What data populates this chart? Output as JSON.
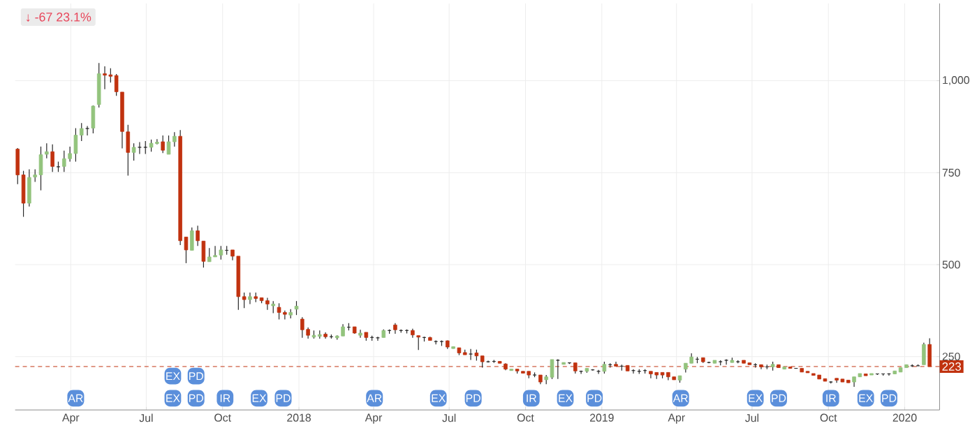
{
  "chart_data": {
    "type": "candlestick",
    "title": "↓ -67 23.1%",
    "x": [
      "2017-01-27",
      "2017-02-03",
      "2017-02-10",
      "2017-02-17",
      "2017-02-24",
      "2017-03-03",
      "2017-03-10",
      "2017-03-17",
      "2017-03-24",
      "2017-03-31",
      "2017-04-07",
      "2017-04-14",
      "2017-04-21",
      "2017-04-28",
      "2017-05-05",
      "2017-05-12",
      "2017-05-19",
      "2017-05-26",
      "2017-06-02",
      "2017-06-09",
      "2017-06-16",
      "2017-06-23",
      "2017-06-30",
      "2017-07-07",
      "2017-07-14",
      "2017-07-21",
      "2017-07-28",
      "2017-08-04",
      "2017-08-11",
      "2017-08-18",
      "2017-08-25",
      "2017-09-01",
      "2017-09-08",
      "2017-09-15",
      "2017-09-22",
      "2017-09-29",
      "2017-10-06",
      "2017-10-13",
      "2017-10-20",
      "2017-10-27",
      "2017-11-03",
      "2017-11-10",
      "2017-11-17",
      "2017-11-24",
      "2017-12-01",
      "2017-12-08",
      "2017-12-15",
      "2017-12-22",
      "2017-12-29",
      "2018-01-05",
      "2018-01-12",
      "2018-01-19",
      "2018-01-26",
      "2018-02-02",
      "2018-02-09",
      "2018-02-16",
      "2018-02-23",
      "2018-03-02",
      "2018-03-09",
      "2018-03-16",
      "2018-03-23",
      "2018-03-30",
      "2018-04-06",
      "2018-04-13",
      "2018-04-20",
      "2018-04-27",
      "2018-05-04",
      "2018-05-11",
      "2018-05-18",
      "2018-05-25",
      "2018-06-01",
      "2018-06-08",
      "2018-06-15",
      "2018-06-22",
      "2018-06-29",
      "2018-07-06",
      "2018-07-13",
      "2018-07-20",
      "2018-07-27",
      "2018-08-03",
      "2018-08-10",
      "2018-08-17",
      "2018-08-24",
      "2018-08-31",
      "2018-09-07",
      "2018-09-14",
      "2018-09-21",
      "2018-09-28",
      "2018-10-05",
      "2018-10-12",
      "2018-10-19",
      "2018-10-26",
      "2018-11-02",
      "2018-11-09",
      "2018-11-16",
      "2018-11-23",
      "2018-11-30",
      "2018-12-07",
      "2018-12-14",
      "2018-12-21",
      "2018-12-28",
      "2019-01-04",
      "2019-01-11",
      "2019-01-18",
      "2019-01-25",
      "2019-02-01",
      "2019-02-08",
      "2019-02-15",
      "2019-02-22",
      "2019-03-01",
      "2019-03-08",
      "2019-03-15",
      "2019-03-22",
      "2019-03-29",
      "2019-04-05",
      "2019-04-12",
      "2019-04-19",
      "2019-04-26",
      "2019-05-03",
      "2019-05-10",
      "2019-05-17",
      "2019-05-24",
      "2019-05-31",
      "2019-06-07",
      "2019-06-14",
      "2019-06-21",
      "2019-06-28",
      "2019-07-05",
      "2019-07-12",
      "2019-07-19",
      "2019-07-26",
      "2019-08-02",
      "2019-08-09",
      "2019-08-16",
      "2019-08-23",
      "2019-08-30",
      "2019-09-06",
      "2019-09-13",
      "2019-09-20",
      "2019-09-27",
      "2019-10-04",
      "2019-10-11",
      "2019-10-18",
      "2019-10-25",
      "2019-11-01",
      "2019-11-08",
      "2019-11-15",
      "2019-11-22",
      "2019-11-29",
      "2019-12-06",
      "2019-12-13",
      "2019-12-20",
      "2019-12-27",
      "2020-01-03",
      "2020-01-10",
      "2020-01-17",
      "2020-01-24",
      "2020-01-31"
    ],
    "ohlc": [
      [
        814,
        817,
        719,
        744
      ],
      [
        744,
        755,
        630,
        667
      ],
      [
        667,
        759,
        658,
        737
      ],
      [
        738,
        759,
        725,
        744
      ],
      [
        744,
        821,
        702,
        799
      ],
      [
        800,
        830,
        789,
        807
      ],
      [
        807,
        827,
        752,
        767
      ],
      [
        766,
        780,
        752,
        766
      ],
      [
        767,
        810,
        752,
        788
      ],
      [
        788,
        821,
        780,
        802
      ],
      [
        802,
        871,
        780,
        852
      ],
      [
        852,
        885,
        836,
        870
      ],
      [
        870,
        877,
        851,
        870
      ],
      [
        871,
        933,
        857,
        931
      ],
      [
        935,
        1048,
        927,
        1019
      ],
      [
        1019,
        1039,
        977,
        1015
      ],
      [
        1016,
        1034,
        995,
        1012
      ],
      [
        1014,
        1018,
        959,
        970
      ],
      [
        969,
        969,
        816,
        862
      ],
      [
        861,
        880,
        742,
        805
      ],
      [
        805,
        830,
        783,
        819
      ],
      [
        819,
        833,
        801,
        819
      ],
      [
        819,
        836,
        801,
        819
      ],
      [
        819,
        840,
        807,
        830
      ],
      [
        829,
        841,
        827,
        833
      ],
      [
        834,
        851,
        803,
        811
      ],
      [
        800,
        851,
        800,
        834
      ],
      [
        834,
        860,
        821,
        849
      ],
      [
        849,
        866,
        553,
        565
      ],
      [
        575,
        575,
        504,
        540
      ],
      [
        539,
        601,
        539,
        592
      ],
      [
        592,
        606,
        551,
        565
      ],
      [
        564,
        564,
        492,
        509
      ],
      [
        508,
        545,
        508,
        521
      ],
      [
        521,
        551,
        521,
        525
      ],
      [
        526,
        551,
        514,
        540
      ],
      [
        539,
        551,
        527,
        539
      ],
      [
        540,
        540,
        512,
        523
      ],
      [
        523,
        523,
        377,
        413
      ],
      [
        413,
        424,
        382,
        405
      ],
      [
        405,
        424,
        393,
        413
      ],
      [
        413,
        424,
        398,
        408
      ],
      [
        410,
        410,
        395,
        402
      ],
      [
        402,
        410,
        377,
        393
      ],
      [
        388,
        401,
        368,
        393
      ],
      [
        384,
        395,
        351,
        370
      ],
      [
        370,
        375,
        351,
        365
      ],
      [
        363,
        379,
        354,
        370
      ],
      [
        379,
        401,
        363,
        387
      ],
      [
        352,
        357,
        301,
        323
      ],
      [
        324,
        329,
        299,
        308
      ],
      [
        303,
        321,
        299,
        308
      ],
      [
        305,
        321,
        299,
        310
      ],
      [
        311,
        316,
        299,
        304
      ],
      [
        304,
        310,
        299,
        304
      ],
      [
        301,
        308,
        296,
        306
      ],
      [
        306,
        338,
        306,
        331
      ],
      [
        330,
        341,
        321,
        330
      ],
      [
        331,
        331,
        312,
        314
      ],
      [
        308,
        323,
        301,
        314
      ],
      [
        316,
        316,
        293,
        302
      ],
      [
        302,
        307,
        293,
        302
      ],
      [
        301,
        304,
        293,
        301
      ],
      [
        302,
        324,
        302,
        321
      ],
      [
        321,
        324,
        312,
        321
      ],
      [
        336,
        341,
        312,
        323
      ],
      [
        321,
        324,
        315,
        321
      ],
      [
        321,
        324,
        313,
        321
      ],
      [
        321,
        326,
        301,
        309
      ],
      [
        307,
        307,
        268,
        303
      ],
      [
        302,
        304,
        291,
        302
      ],
      [
        302,
        304,
        294,
        294
      ],
      [
        291,
        294,
        283,
        291
      ],
      [
        291,
        294,
        279,
        291
      ],
      [
        293,
        294,
        271,
        276
      ],
      [
        272,
        277,
        272,
        277
      ],
      [
        274,
        274,
        254,
        260
      ],
      [
        261,
        269,
        255,
        255
      ],
      [
        257,
        271,
        241,
        257
      ],
      [
        260,
        269,
        239,
        252
      ],
      [
        252,
        252,
        220,
        236
      ],
      [
        236,
        239,
        234,
        236
      ],
      [
        237,
        241,
        233,
        237
      ],
      [
        237,
        237,
        232,
        232
      ],
      [
        230,
        232,
        213,
        216
      ],
      [
        212,
        216,
        212,
        216
      ],
      [
        216,
        216,
        204,
        211
      ],
      [
        210,
        210,
        205,
        205
      ],
      [
        210,
        210,
        191,
        200
      ],
      [
        200,
        207,
        194,
        200
      ],
      [
        200,
        200,
        175,
        181
      ],
      [
        187,
        200,
        175,
        195
      ],
      [
        194,
        242,
        189,
        242
      ],
      [
        240,
        243,
        189,
        240
      ],
      [
        229,
        234,
        229,
        234
      ],
      [
        233,
        234,
        230,
        233
      ],
      [
        233,
        233,
        204,
        211
      ],
      [
        210,
        212,
        203,
        210
      ],
      [
        210,
        218,
        206,
        218
      ],
      [
        214,
        216,
        212,
        214
      ],
      [
        210,
        214,
        203,
        210
      ],
      [
        210,
        236,
        204,
        229
      ],
      [
        228,
        232,
        220,
        228
      ],
      [
        229,
        236,
        224,
        224
      ],
      [
        224,
        228,
        212,
        224
      ],
      [
        226,
        226,
        211,
        211
      ],
      [
        212,
        216,
        204,
        212
      ],
      [
        210,
        216,
        203,
        210
      ],
      [
        212,
        216,
        204,
        212
      ],
      [
        210,
        210,
        191,
        203
      ],
      [
        207,
        207,
        189,
        200
      ],
      [
        207,
        207,
        191,
        200
      ],
      [
        207,
        207,
        186,
        195
      ],
      [
        195,
        195,
        187,
        187
      ],
      [
        186,
        198,
        179,
        198
      ],
      [
        216,
        232,
        207,
        232
      ],
      [
        232,
        259,
        232,
        249
      ],
      [
        243,
        249,
        232,
        243
      ],
      [
        247,
        247,
        233,
        236
      ],
      [
        234,
        236,
        232,
        234
      ],
      [
        232,
        240,
        232,
        240
      ],
      [
        236,
        240,
        226,
        236
      ],
      [
        240,
        243,
        228,
        240
      ],
      [
        234,
        247,
        234,
        240
      ],
      [
        236,
        240,
        232,
        236
      ],
      [
        240,
        240,
        232,
        232
      ],
      [
        233,
        233,
        228,
        228
      ],
      [
        228,
        232,
        220,
        228
      ],
      [
        228,
        228,
        216,
        222
      ],
      [
        222,
        228,
        216,
        222
      ],
      [
        222,
        236,
        212,
        229
      ],
      [
        228,
        228,
        220,
        220
      ],
      [
        216,
        222,
        216,
        222
      ],
      [
        222,
        222,
        218,
        218
      ],
      [
        218,
        218,
        218,
        218
      ],
      [
        218,
        218,
        208,
        208
      ],
      [
        210,
        210,
        206,
        206
      ],
      [
        204,
        204,
        199,
        199
      ],
      [
        200,
        200,
        189,
        189
      ],
      [
        190,
        190,
        183,
        183
      ],
      [
        181,
        183,
        177,
        181
      ],
      [
        191,
        191,
        179,
        186
      ],
      [
        189,
        189,
        181,
        181
      ],
      [
        186,
        186,
        179,
        179
      ],
      [
        181,
        195,
        168,
        195
      ],
      [
        195,
        204,
        195,
        204
      ],
      [
        203,
        203,
        198,
        198
      ],
      [
        200,
        204,
        200,
        204
      ],
      [
        203,
        204,
        200,
        203
      ],
      [
        203,
        204,
        198,
        203
      ],
      [
        203,
        205,
        198,
        203
      ],
      [
        203,
        211,
        203,
        211
      ],
      [
        208,
        220,
        208,
        220
      ],
      [
        220,
        228,
        220,
        228
      ],
      [
        225,
        229,
        222,
        225
      ],
      [
        225,
        229,
        225,
        225
      ],
      [
        228,
        288,
        228,
        283
      ],
      [
        283,
        300,
        223,
        223
      ]
    ],
    "colors": [
      "#c1320f",
      "#c1320f",
      "#93c47d",
      "#93c47d",
      "#93c47d",
      "#93c47d",
      "#c1320f",
      "#222222",
      "#93c47d",
      "#93c47d",
      "#93c47d",
      "#93c47d",
      "#222222",
      "#93c47d",
      "#93c47d",
      "#c1320f",
      "#c1320f",
      "#c1320f",
      "#c1320f",
      "#c1320f",
      "#93c47d",
      "#222222",
      "#222222",
      "#93c47d",
      "#93c47d",
      "#c1320f",
      "#93c47d",
      "#93c47d",
      "#c1320f",
      "#c1320f",
      "#93c47d",
      "#c1320f",
      "#c1320f",
      "#93c47d",
      "#93c47d",
      "#93c47d",
      "#222222",
      "#c1320f",
      "#c1320f",
      "#c1320f",
      "#93c47d",
      "#c1320f",
      "#c1320f",
      "#c1320f",
      "#93c47d",
      "#c1320f",
      "#c1320f",
      "#93c47d",
      "#93c47d",
      "#c1320f",
      "#c1320f",
      "#93c47d",
      "#93c47d",
      "#c1320f",
      "#222222",
      "#93c47d",
      "#93c47d",
      "#222222",
      "#c1320f",
      "#93c47d",
      "#c1320f",
      "#222222",
      "#222222",
      "#93c47d",
      "#222222",
      "#c1320f",
      "#222222",
      "#222222",
      "#c1320f",
      "#c1320f",
      "#222222",
      "#c1320f",
      "#222222",
      "#222222",
      "#c1320f",
      "#93c47d",
      "#c1320f",
      "#c1320f",
      "#222222",
      "#c1320f",
      "#c1320f",
      "#222222",
      "#222222",
      "#c1320f",
      "#c1320f",
      "#93c47d",
      "#c1320f",
      "#c1320f",
      "#c1320f",
      "#222222",
      "#c1320f",
      "#93c47d",
      "#93c47d",
      "#222222",
      "#93c47d",
      "#222222",
      "#c1320f",
      "#222222",
      "#93c47d",
      "#222222",
      "#222222",
      "#93c47d",
      "#222222",
      "#c1320f",
      "#222222",
      "#c1320f",
      "#222222",
      "#222222",
      "#222222",
      "#c1320f",
      "#c1320f",
      "#c1320f",
      "#c1320f",
      "#c1320f",
      "#93c47d",
      "#93c47d",
      "#93c47d",
      "#222222",
      "#c1320f",
      "#222222",
      "#93c47d",
      "#222222",
      "#222222",
      "#93c47d",
      "#222222",
      "#c1320f",
      "#c1320f",
      "#222222",
      "#c1320f",
      "#222222",
      "#93c47d",
      "#c1320f",
      "#93c47d",
      "#c1320f",
      "#222222",
      "#c1320f",
      "#c1320f",
      "#c1320f",
      "#c1320f",
      "#c1320f",
      "#222222",
      "#c1320f",
      "#c1320f",
      "#c1320f",
      "#93c47d",
      "#93c47d",
      "#c1320f",
      "#93c47d",
      "#222222",
      "#222222",
      "#222222",
      "#93c47d",
      "#93c47d",
      "#93c47d",
      "#222222",
      "#222222",
      "#93c47d",
      "#c1320f"
    ],
    "xlim": [
      "2017-01-24",
      "2020-02-12"
    ],
    "xticks": [
      {
        "value": "2017-04-01",
        "label": "Apr"
      },
      {
        "value": "2017-07-01",
        "label": "Jul"
      },
      {
        "value": "2017-10-01",
        "label": "Oct"
      },
      {
        "value": "2018-01-01",
        "label": "2018"
      },
      {
        "value": "2018-04-01",
        "label": "Apr"
      },
      {
        "value": "2018-07-01",
        "label": "Jul"
      },
      {
        "value": "2018-10-01",
        "label": "Oct"
      },
      {
        "value": "2019-01-01",
        "label": "2019"
      },
      {
        "value": "2019-04-01",
        "label": "Apr"
      },
      {
        "value": "2019-07-01",
        "label": "Jul"
      },
      {
        "value": "2019-10-01",
        "label": "Oct"
      },
      {
        "value": "2020-01-01",
        "label": "2020"
      }
    ],
    "ylim": [
      105,
      1210
    ],
    "yticks": [
      250,
      500,
      750,
      {
        "value": 1000,
        "label": "1,000"
      }
    ],
    "grid": true,
    "ref_lines": [
      {
        "axis": "y",
        "value": 223,
        "label": "223",
        "color": "#c1320f",
        "line_style": "dashed"
      }
    ],
    "annotations": [
      {
        "text": "AR",
        "x": "2017-04-07",
        "y": 137
      },
      {
        "text": "EX",
        "x": "2017-08-02",
        "y": 197
      },
      {
        "text": "PD",
        "x": "2017-08-30",
        "y": 197
      },
      {
        "text": "EX",
        "x": "2017-08-02",
        "y": 137
      },
      {
        "text": "PD",
        "x": "2017-08-30",
        "y": 137
      },
      {
        "text": "IR",
        "x": "2017-10-04",
        "y": 137
      },
      {
        "text": "EX",
        "x": "2017-11-14",
        "y": 137
      },
      {
        "text": "PD",
        "x": "2017-12-13",
        "y": 137
      },
      {
        "text": "AR",
        "x": "2018-04-02",
        "y": 137
      },
      {
        "text": "EX",
        "x": "2018-06-18",
        "y": 137
      },
      {
        "text": "PD",
        "x": "2018-07-30",
        "y": 137
      },
      {
        "text": "IR",
        "x": "2018-10-08",
        "y": 137
      },
      {
        "text": "EX",
        "x": "2018-11-18",
        "y": 137
      },
      {
        "text": "PD",
        "x": "2018-12-23",
        "y": 137
      },
      {
        "text": "AR",
        "x": "2019-04-06",
        "y": 137
      },
      {
        "text": "EX",
        "x": "2019-07-05",
        "y": 137
      },
      {
        "text": "PD",
        "x": "2019-08-02",
        "y": 137
      },
      {
        "text": "IR",
        "x": "2019-10-04",
        "y": 137
      },
      {
        "text": "EX",
        "x": "2019-11-15",
        "y": 137
      },
      {
        "text": "PD",
        "x": "2019-12-13",
        "y": 137
      }
    ]
  }
}
